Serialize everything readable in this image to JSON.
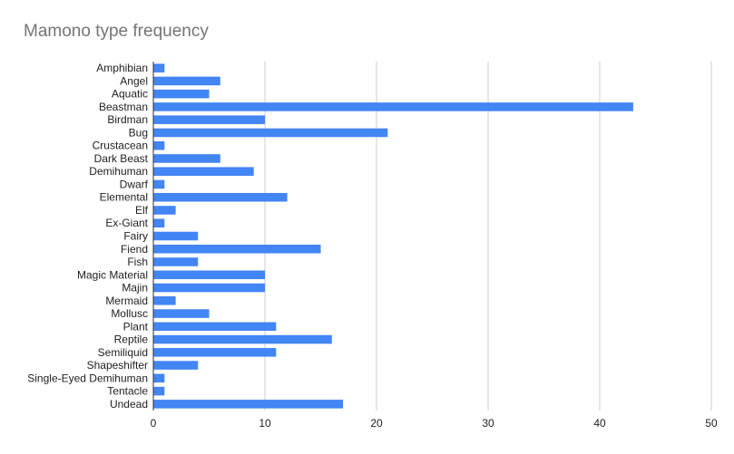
{
  "chart_data": {
    "type": "bar",
    "orientation": "horizontal",
    "title": "Mamono type frequency",
    "xlabel": "",
    "ylabel": "",
    "xlim": [
      0,
      50
    ],
    "x_ticks": [
      0,
      10,
      20,
      30,
      40,
      50
    ],
    "grid": true,
    "legend": "none",
    "bar_color": "#4285f4",
    "categories": [
      "Amphibian",
      "Angel",
      "Aquatic",
      "Beastman",
      "Birdman",
      "Bug",
      "Crustacean",
      "Dark Beast",
      "Demihuman",
      "Dwarf",
      "Elemental",
      "Elf",
      "Ex-Giant",
      "Fairy",
      "Fiend",
      "Fish",
      "Magic Material",
      "Majin",
      "Mermaid",
      "Mollusc",
      "Plant",
      "Reptile",
      "Semiliquid",
      "Shapeshifter",
      "Single-Eyed Demihuman",
      "Tentacle",
      "Undead"
    ],
    "values": [
      1,
      6,
      5,
      43,
      10,
      21,
      1,
      6,
      9,
      1,
      12,
      2,
      1,
      4,
      15,
      4,
      10,
      10,
      2,
      5,
      11,
      16,
      11,
      4,
      1,
      1,
      17
    ]
  }
}
